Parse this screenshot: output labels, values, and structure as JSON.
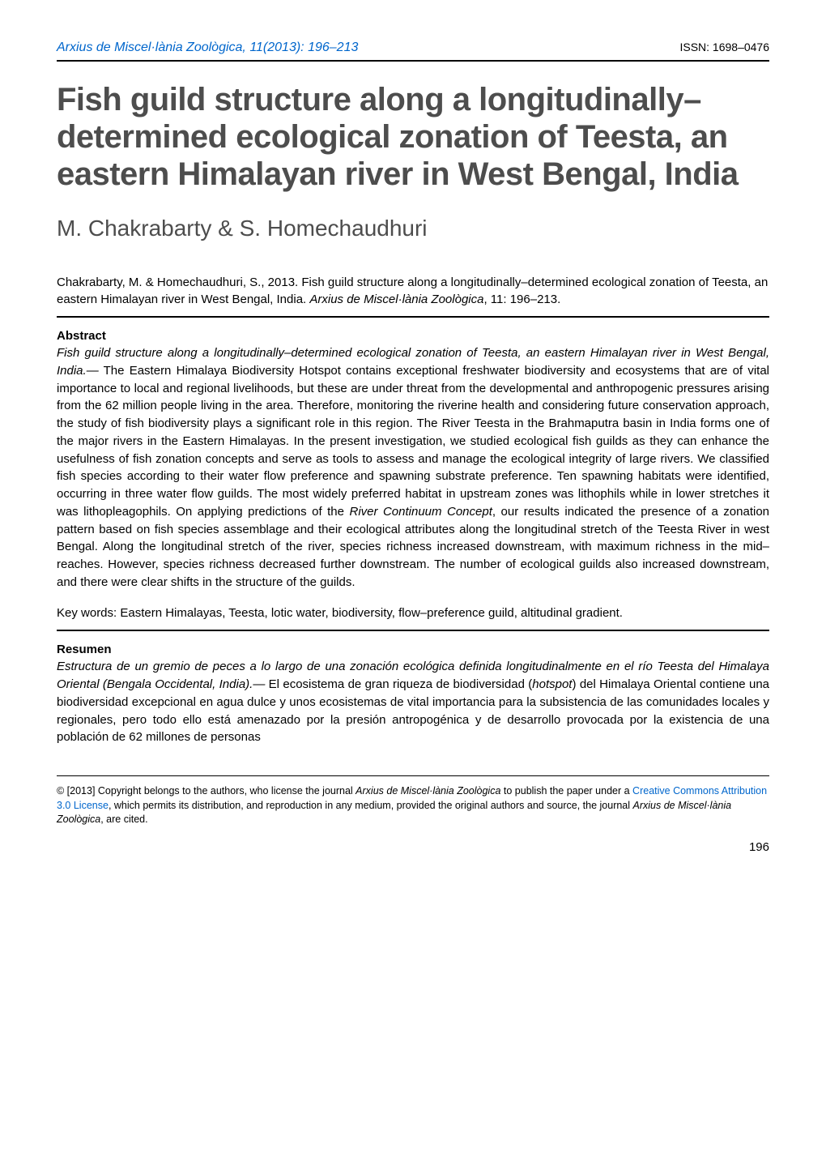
{
  "header": {
    "journal_ref": "Arxius de Miscel·lània Zoològica, 11(2013): 196–213",
    "issn": "ISSN: 1698–0476"
  },
  "title": "Fish guild structure along a longitudinally–determined ecological zonation of Teesta, an eastern Himalayan river in West Bengal, India",
  "authors": "M. Chakrabarty & S. Homechaudhuri",
  "citation": {
    "text_before_journal": "Chakrabarty, M. & Homechaudhuri, S., 2013. Fish guild structure along a longitudinally–determined ecological zonation of Teesta, an eastern Himalayan river in West Bengal, India. ",
    "journal": "Arxius de Miscel·lània Zoològica",
    "text_after_journal": ", 11: 196–213."
  },
  "abstract": {
    "heading": "Abstract",
    "title_line": "Fish guild structure along a longitudinally–determined ecological zonation of Teesta, an eastern Himalayan river in West Bengal, India.—",
    "body": " The Eastern Himalaya Biodiversity Hotspot contains exceptional freshwater biodiversity and ecosystems that are of vital importance to local and regional livelihoods, but these are under threat from the developmental and anthropogenic pressures arising from the 62 million people living in the area. Therefore, monitoring the riverine health and considering future conservation approach, the study of fish biodiversity plays a significant role in this region. The River Teesta in the Brahmaputra basin in India forms one of the major rivers in the Eastern Himalayas. In the present investigation, we studied ecological fish guilds as they can enhance the usefulness of fish zonation concepts and serve as tools to assess and manage the ecological integrity of large rivers. We classified fish species according to their water flow preference and spawning substrate preference. Ten spawning habitats were identified, occurring in three water flow guilds. The most widely preferred habitat in upstream zones was lithophils while in lower stretches it was lithopleagophils. On applying predictions of the ",
    "rcc_italic": "River Continuum Concept",
    "body_after_rcc": ", our results indicated the presence of a zonation pattern based on fish species assemblage and their ecological attributes along the longitudinal stretch of the Teesta River in west Bengal. Along the longitudinal stretch of the river, species richness increased downstream, with maximum richness in the mid–reaches. However, species richness decreased further downstream. The number of ecological guilds also increased downstream, and there were clear shifts in the structure of the guilds."
  },
  "keywords": {
    "text": "Key words: Eastern Himalayas, Teesta, lotic water, biodiversity, flow–preference guild, altitudinal gradient."
  },
  "resumen": {
    "heading": "Resumen",
    "title_line": "Estructura de un gremio de peces a lo largo de una zonación ecológica definida longitudinalmente en el río Teesta del Himalaya Oriental (Bengala Occidental, India).—",
    "body_before_hotspot": " El ecosistema de gran riqueza de biodiversidad (",
    "hotspot": "hotspot",
    "body_after_hotspot": ") del Himalaya Oriental contiene una biodiversidad excepcional en agua dulce y unos ecosistemas de vital importancia para la subsistencia de las comunidades locales y regionales, pero todo ello está amenazado por la presión antropogénica y de desarrollo provocada por la existencia de una población de 62 millones de personas"
  },
  "copyright": {
    "part1": "© [2013] Copyright belongs to the authors, who license the journal ",
    "journal1": "Arxius de Miscel·lània Zoològica",
    "part2": " to publish the paper under a ",
    "cc_link": "Creative Commons Attribution 3.0 License",
    "part3": ", which permits its distribution, and reproduction in any medium, provided the original authors and source, the journal ",
    "journal2": "Arxius de Miscel·lània Zoològica",
    "part4": ", are cited."
  },
  "page_number": "196",
  "colors": {
    "link": "#0066cc",
    "title_gray": "#4d4d4d",
    "text": "#000000",
    "background": "#ffffff"
  },
  "typography": {
    "title_fontsize": 40,
    "authors_fontsize": 28,
    "body_fontsize": 15,
    "footer_fontsize": 12.5
  }
}
